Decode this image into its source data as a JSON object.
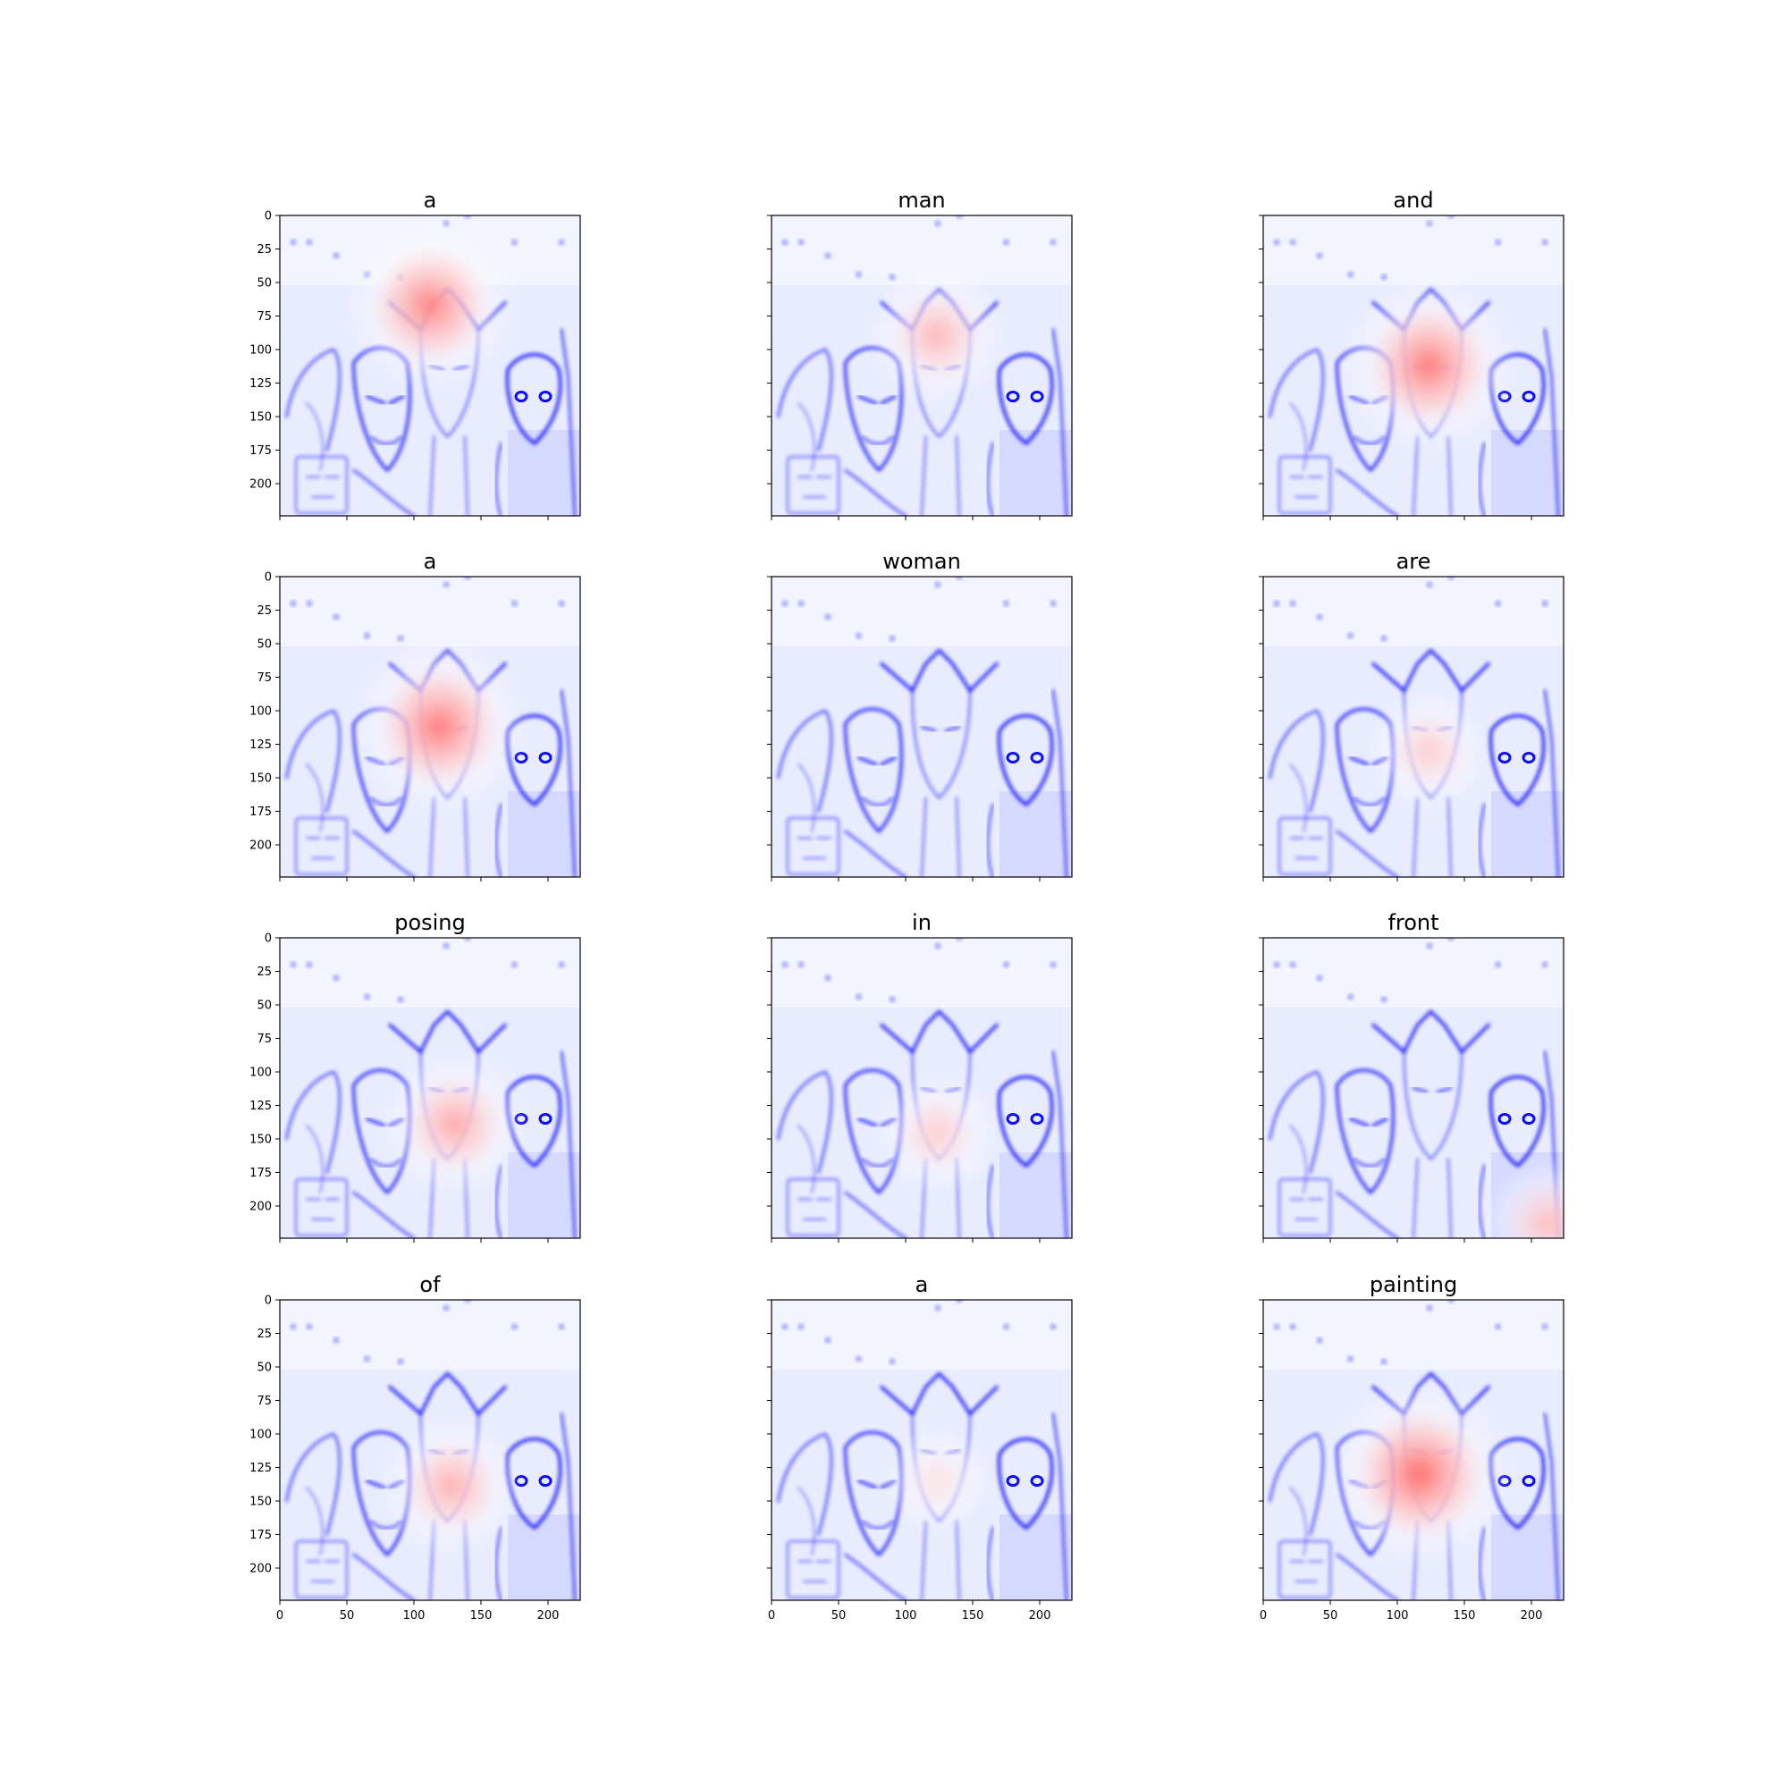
{
  "figure": {
    "panels": [
      {
        "word": "a",
        "hotspot": [
          0.5,
          0.3,
          0.7
        ]
      },
      {
        "word": "man",
        "hotspot": [
          0.55,
          0.4,
          0.35
        ]
      },
      {
        "word": "and",
        "hotspot": [
          0.55,
          0.5,
          0.75
        ]
      },
      {
        "word": "a",
        "hotspot": [
          0.53,
          0.5,
          0.75
        ]
      },
      {
        "word": "woman",
        "hotspot": [
          0.55,
          0.5,
          0.0
        ]
      },
      {
        "word": "are",
        "hotspot": [
          0.55,
          0.58,
          0.2
        ]
      },
      {
        "word": "posing",
        "hotspot": [
          0.58,
          0.62,
          0.45
        ]
      },
      {
        "word": "in",
        "hotspot": [
          0.55,
          0.65,
          0.2
        ]
      },
      {
        "word": "front",
        "hotspot": [
          0.95,
          0.95,
          0.3
        ]
      },
      {
        "word": "of",
        "hotspot": [
          0.57,
          0.62,
          0.4
        ]
      },
      {
        "word": "a",
        "hotspot": [
          0.55,
          0.6,
          0.05
        ]
      },
      {
        "word": "painting",
        "hotspot": [
          0.52,
          0.58,
          0.85
        ]
      }
    ],
    "xticks": [
      0,
      50,
      100,
      150,
      200
    ],
    "yticks": [
      0,
      25,
      50,
      75,
      100,
      125,
      150,
      175,
      200
    ],
    "axis_max": 224,
    "colors": {
      "low": "#0000ff",
      "high": "#ff0000",
      "neutral": "#ffffff"
    }
  }
}
